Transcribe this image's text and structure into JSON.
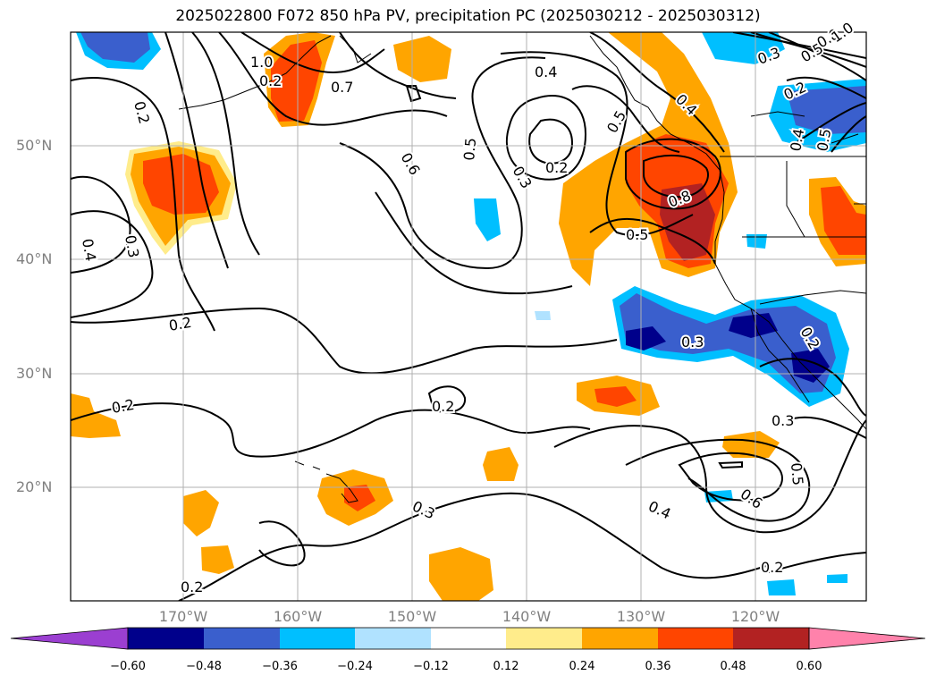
{
  "title": "2025022800 F072 850 hPa PV, precipitation PC (2025030212 - 2025030312)",
  "map": {
    "lon_labels": [
      "170°W",
      "160°W",
      "150°W",
      "140°W",
      "130°W",
      "120°W"
    ],
    "lat_labels": [
      "50°N",
      "40°N",
      "30°N",
      "20°N"
    ],
    "contour_labels": [
      "1.0",
      "0.2",
      "0.7",
      "0.4",
      "0.2",
      "0.6",
      "0.5",
      "0.3",
      "0.2",
      "0.4",
      "0.5",
      "0.8",
      "0.5",
      "0.4",
      "0.3",
      "0.2",
      "0.2",
      "0.2",
      "0.3",
      "0.4",
      "0.6",
      "0.5",
      "0.3",
      "0.2",
      "0.2",
      "0.3",
      "0.2",
      "0.4",
      "0.5",
      "0.2",
      "0.3",
      "0.5",
      "0.8",
      "1.0"
    ]
  },
  "colorbar": {
    "ticks": [
      "−0.60",
      "−0.48",
      "−0.36",
      "−0.24",
      "−0.12",
      "0.12",
      "0.24",
      "0.36",
      "0.48",
      "0.60"
    ],
    "colors": [
      "#9b3fd1",
      "#00008b",
      "#3a5fcd",
      "#00bfff",
      "#b0e2ff",
      "#ffffff",
      "#ffec8b",
      "#ffa500",
      "#ff4500",
      "#b22222",
      "#ff82ab"
    ]
  }
}
